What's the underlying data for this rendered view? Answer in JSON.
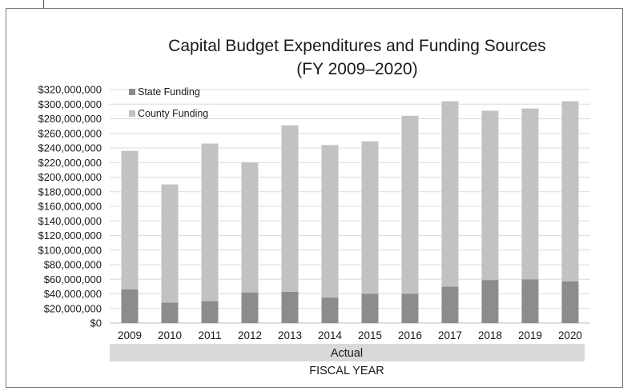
{
  "chart_data": {
    "type": "bar",
    "stacked": true,
    "title": "Capital Budget Expenditures and Funding Sources",
    "subtitle": "(FY 2009–2020)",
    "xlabel": "FISCAL YEAR",
    "x_group_label": "Actual",
    "categories": [
      "2009",
      "2010",
      "2011",
      "2012",
      "2013",
      "2014",
      "2015",
      "2016",
      "2017",
      "2018",
      "2019",
      "2020"
    ],
    "series": [
      {
        "name": "State Funding",
        "color": "#8c8c8c",
        "values": [
          46000000,
          28000000,
          30000000,
          42000000,
          43000000,
          35000000,
          40000000,
          40000000,
          50000000,
          59000000,
          60000000,
          57000000
        ]
      },
      {
        "name": "County Funding",
        "color": "#c2c2c2",
        "values": [
          190000000,
          162000000,
          216000000,
          178000000,
          228000000,
          209000000,
          209000000,
          244000000,
          254000000,
          232000000,
          234000000,
          247000000
        ]
      }
    ],
    "ylim": [
      0,
      320000000
    ],
    "ytick_labels": [
      "$0",
      "$20,000,000",
      "$40,000,000",
      "$60,000,000",
      "$80,000,000",
      "$100,000,000",
      "$120,000,000",
      "$140,000,000",
      "$160,000,000",
      "$180,000,000",
      "$200,000,000",
      "$220,000,000",
      "$240,000,000",
      "$260,000,000",
      "$280,000,000",
      "$300,000,000",
      "$320,000,000"
    ],
    "grid": true,
    "legend_position": "top-left"
  }
}
